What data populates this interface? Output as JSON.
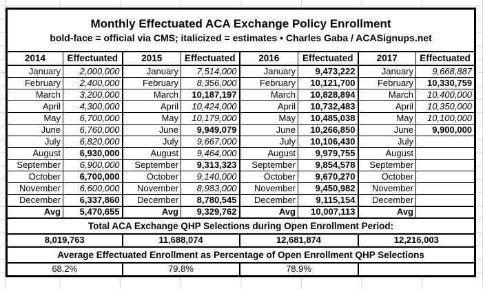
{
  "title": "Monthly Effectuated ACA Exchange Policy Enrollment",
  "subtitle": "bold-face = official via CMS; italicized = estimates  •  Charles Gaba / ACASignups.net",
  "value_header": "Effectuated",
  "avg_label": "Avg",
  "months": [
    "January",
    "February",
    "March",
    "April",
    "May",
    "June",
    "July",
    "August",
    "September",
    "October",
    "November",
    "December"
  ],
  "series": [
    {
      "year": "2014",
      "avg": "5,470,655",
      "values": [
        {
          "v": "2,000,000",
          "official": false
        },
        {
          "v": "2,400,000",
          "official": false
        },
        {
          "v": "3,200,000",
          "official": false
        },
        {
          "v": "4,300,000",
          "official": false
        },
        {
          "v": "6,700,000",
          "official": false
        },
        {
          "v": "6,760,000",
          "official": false
        },
        {
          "v": "6,820,000",
          "official": false
        },
        {
          "v": "6,930,000",
          "official": true
        },
        {
          "v": "6,900,000",
          "official": false
        },
        {
          "v": "6,700,000",
          "official": true
        },
        {
          "v": "6,600,000",
          "official": false
        },
        {
          "v": "6,337,860",
          "official": true
        }
      ]
    },
    {
      "year": "2015",
      "avg": "9,329,762",
      "values": [
        {
          "v": "7,514,000",
          "official": false
        },
        {
          "v": "8,356,000",
          "official": false
        },
        {
          "v": "10,187,197",
          "official": true
        },
        {
          "v": "10,424,000",
          "official": false
        },
        {
          "v": "10,179,000",
          "official": false
        },
        {
          "v": "9,949,079",
          "official": true
        },
        {
          "v": "9,667,000",
          "official": false
        },
        {
          "v": "9,464,000",
          "official": false
        },
        {
          "v": "9,313,323",
          "official": true
        },
        {
          "v": "9,140,000",
          "official": false
        },
        {
          "v": "8,983,000",
          "official": false
        },
        {
          "v": "8,780,545",
          "official": true
        }
      ]
    },
    {
      "year": "2016",
      "avg": "10,007,113",
      "values": [
        {
          "v": "9,473,222",
          "official": true
        },
        {
          "v": "10,121,700",
          "official": true
        },
        {
          "v": "10,828,894",
          "official": true
        },
        {
          "v": "10,732,483",
          "official": true
        },
        {
          "v": "10,485,038",
          "official": true
        },
        {
          "v": "10,266,850",
          "official": true
        },
        {
          "v": "10,106,430",
          "official": true
        },
        {
          "v": "9,979,755",
          "official": true
        },
        {
          "v": "9,854,578",
          "official": true
        },
        {
          "v": "9,670,270",
          "official": true
        },
        {
          "v": "9,450,982",
          "official": true
        },
        {
          "v": "9,115,154",
          "official": true
        }
      ]
    },
    {
      "year": "2017",
      "avg": "",
      "values": [
        {
          "v": "9,668,887",
          "official": false
        },
        {
          "v": "10,330,759",
          "official": true
        },
        {
          "v": "10,400,000",
          "official": false
        },
        {
          "v": "10,350,000",
          "official": false
        },
        {
          "v": "10,100,000",
          "official": false
        },
        {
          "v": "9,900,000",
          "official": true
        },
        {
          "v": "",
          "official": false
        },
        {
          "v": "",
          "official": false
        },
        {
          "v": "",
          "official": false
        },
        {
          "v": "",
          "official": false
        },
        {
          "v": "",
          "official": false
        },
        {
          "v": "",
          "official": false
        }
      ]
    }
  ],
  "qhp_section": {
    "header": "Total ACA Exchange QHP Selections during Open Enrollment Period:",
    "totals": [
      "8,019,763",
      "11,688,074",
      "12,681,874",
      "12,216,003"
    ]
  },
  "pct_section": {
    "header": "Average Effectuated Enrollment as Percentage of Open Enrollment QHP Selections",
    "values": [
      "68.2%",
      "79.8%",
      "78.9%",
      ""
    ]
  }
}
